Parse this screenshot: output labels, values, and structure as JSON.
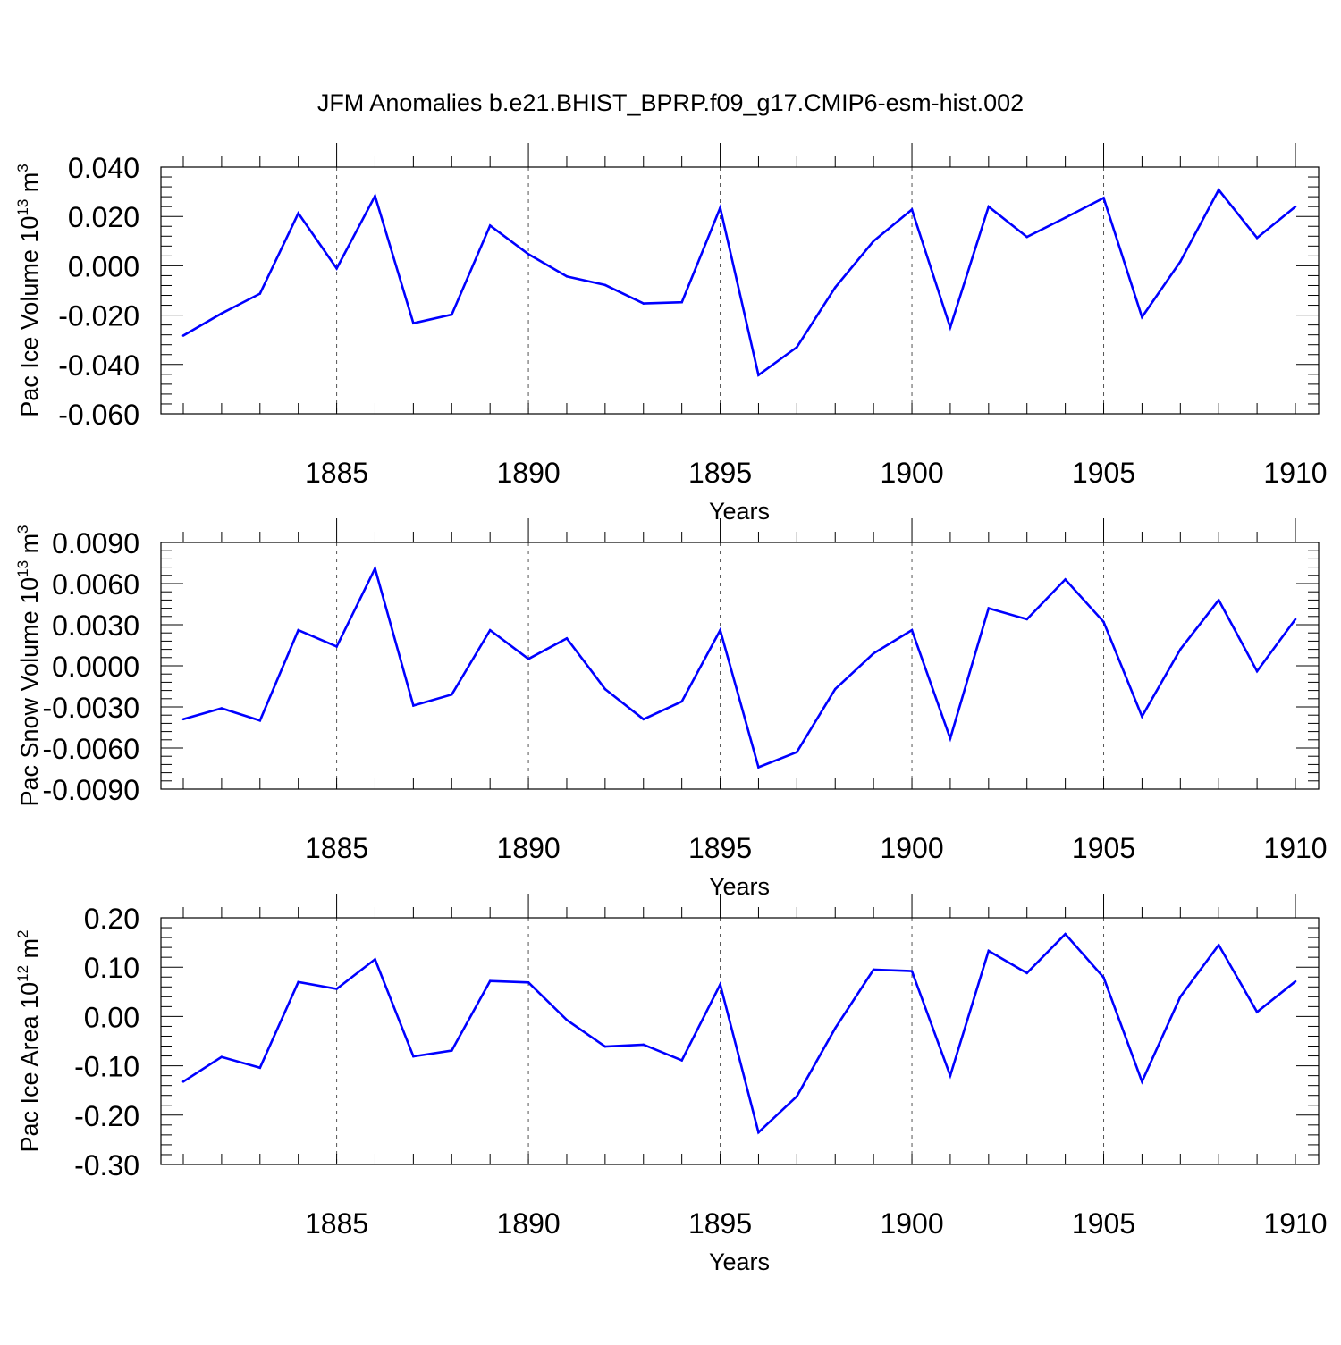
{
  "title": "JFM Anomalies b.e21.BHIST_BPRP.f09_g17.CMIP6-esm-hist.002",
  "colors": {
    "line": "#0000ff",
    "axis": "#000000",
    "grid": "#555555"
  },
  "chart_data": [
    {
      "type": "line",
      "ylabel": "Pac Ice Volume 10",
      "ylabel_exp": "13",
      "ylabel_unit": "m",
      "ylabel_unit_exp": "3",
      "xlabel": "Years",
      "xlim": [
        1881,
        1910
      ],
      "ylim": [
        -0.06,
        0.04
      ],
      "yticks": [
        0.04,
        0.02,
        0.0,
        -0.02,
        -0.04,
        -0.06
      ],
      "ytick_labels": [
        "0.040",
        "0.020",
        "0.000",
        "-0.020",
        "-0.040",
        "-0.060"
      ],
      "xticks": [
        1885,
        1890,
        1895,
        1900,
        1905,
        1910
      ],
      "xtick_labels": [
        "1885",
        "1890",
        "1895",
        "1900",
        "1905",
        "1910"
      ],
      "grid": "vertical dashed at major x ticks",
      "x": [
        1881,
        1882,
        1883,
        1884,
        1885,
        1886,
        1887,
        1888,
        1889,
        1890,
        1891,
        1892,
        1893,
        1894,
        1895,
        1896,
        1897,
        1898,
        1899,
        1900,
        1901,
        1902,
        1903,
        1904,
        1905,
        1906,
        1907,
        1908,
        1909,
        1910
      ],
      "values": [
        -0.0283,
        -0.0193,
        -0.0113,
        0.0213,
        -0.0011,
        0.0283,
        -0.0233,
        -0.0198,
        0.0163,
        0.0047,
        -0.0043,
        -0.0078,
        -0.0153,
        -0.0148,
        0.0235,
        -0.0443,
        -0.033,
        -0.0088,
        0.01,
        0.0228,
        -0.025,
        0.024,
        0.0117,
        0.0195,
        0.0275,
        -0.0208,
        0.0017,
        0.0308,
        0.0113,
        0.024
      ]
    },
    {
      "type": "line",
      "ylabel": "Pac Snow Volume 10",
      "ylabel_exp": "13",
      "ylabel_unit": "m",
      "ylabel_unit_exp": "3",
      "xlabel": "Years",
      "xlim": [
        1881,
        1910
      ],
      "ylim": [
        -0.009,
        0.009
      ],
      "yticks": [
        0.009,
        0.006,
        0.003,
        0.0,
        -0.003,
        -0.006,
        -0.009
      ],
      "ytick_labels": [
        "0.0090",
        "0.0060",
        "0.0030",
        "0.0000",
        "-0.0030",
        "-0.0060",
        "-0.0090"
      ],
      "xticks": [
        1885,
        1890,
        1895,
        1900,
        1905,
        1910
      ],
      "xtick_labels": [
        "1885",
        "1890",
        "1895",
        "1900",
        "1905",
        "1910"
      ],
      "grid": "vertical dashed at major x ticks",
      "x": [
        1881,
        1882,
        1883,
        1884,
        1885,
        1886,
        1887,
        1888,
        1889,
        1890,
        1891,
        1892,
        1893,
        1894,
        1895,
        1896,
        1897,
        1898,
        1899,
        1900,
        1901,
        1902,
        1903,
        1904,
        1905,
        1906,
        1907,
        1908,
        1909,
        1910
      ],
      "values": [
        -0.0039,
        -0.0031,
        -0.004,
        0.0026,
        0.0014,
        0.0071,
        -0.0029,
        -0.0021,
        0.0026,
        0.0005,
        0.002,
        -0.0017,
        -0.0039,
        -0.0026,
        0.0026,
        -0.0074,
        -0.0063,
        -0.0017,
        0.0009,
        0.0026,
        -0.0053,
        0.0042,
        0.0034,
        0.0063,
        0.0032,
        -0.0037,
        0.0012,
        0.0048,
        -0.0004,
        0.0034
      ]
    },
    {
      "type": "line",
      "ylabel": "Pac Ice Area 10",
      "ylabel_exp": "12",
      "ylabel_unit": "m",
      "ylabel_unit_exp": "2",
      "xlabel": "Years",
      "xlim": [
        1881,
        1910
      ],
      "ylim": [
        -0.3,
        0.2
      ],
      "yticks": [
        0.2,
        0.1,
        0.0,
        -0.1,
        -0.2,
        -0.3
      ],
      "ytick_labels": [
        "0.20",
        "0.10",
        "0.00",
        "-0.10",
        "-0.20",
        "-0.30"
      ],
      "xticks": [
        1885,
        1890,
        1895,
        1900,
        1905,
        1910
      ],
      "xtick_labels": [
        "1885",
        "1890",
        "1895",
        "1900",
        "1905",
        "1910"
      ],
      "grid": "vertical dashed at major x ticks",
      "x": [
        1881,
        1882,
        1883,
        1884,
        1885,
        1886,
        1887,
        1888,
        1889,
        1890,
        1891,
        1892,
        1893,
        1894,
        1895,
        1896,
        1897,
        1898,
        1899,
        1900,
        1901,
        1902,
        1903,
        1904,
        1905,
        1906,
        1907,
        1908,
        1909,
        1910
      ],
      "values": [
        -0.132,
        -0.082,
        -0.104,
        0.07,
        0.056,
        0.116,
        -0.081,
        -0.069,
        0.072,
        0.069,
        -0.007,
        -0.061,
        -0.057,
        -0.089,
        0.065,
        -0.235,
        -0.162,
        -0.024,
        0.095,
        0.092,
        -0.12,
        0.133,
        0.088,
        0.167,
        0.079,
        -0.132,
        0.04,
        0.145,
        0.009,
        0.071
      ]
    }
  ]
}
